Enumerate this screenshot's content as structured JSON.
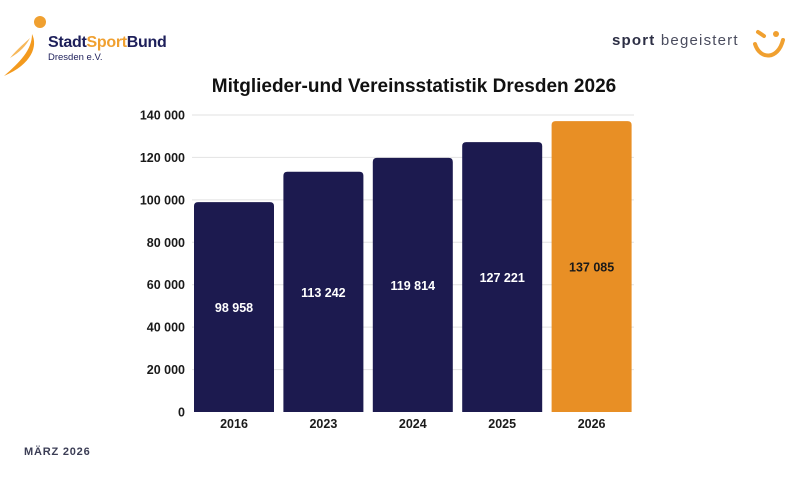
{
  "header": {
    "logo_left": {
      "brand_part1": "Stadt",
      "brand_part2": "Sport",
      "brand_part3": "Bund",
      "subline": "Dresden e.V."
    },
    "logo_right": {
      "slogan_bold": "sport",
      "slogan_rest": " begeistert",
      "icon": "smiley-icon"
    }
  },
  "footer": {
    "date_label": "MÄRZ 2026"
  },
  "colors": {
    "bar_default": "#1c1a4f",
    "bar_highlight": "#e88f25",
    "grid": "#e2e2e2",
    "label_light": "#ffffff",
    "label_dark": "#1a1a1a"
  },
  "chart_data": {
    "type": "bar",
    "title": "Mitglieder-und Vereinsstatistik Dresden 2026",
    "xlabel": "",
    "ylabel": "",
    "categories": [
      "2016",
      "2023",
      "2024",
      "2025",
      "2026"
    ],
    "values": [
      98958,
      113242,
      119814,
      127221,
      137085
    ],
    "data_labels": [
      "98 958",
      "113 242",
      "119 814",
      "127 221",
      "137 085"
    ],
    "highlight_category": "2026",
    "ylim": [
      0,
      140000
    ],
    "yticks": [
      0,
      20000,
      40000,
      60000,
      80000,
      100000,
      120000,
      140000
    ],
    "ytick_labels": [
      "0",
      "20 000",
      "40 000",
      "60 000",
      "80 000",
      "100 000",
      "120 000",
      "140 000"
    ],
    "grid": true,
    "legend": "none"
  }
}
